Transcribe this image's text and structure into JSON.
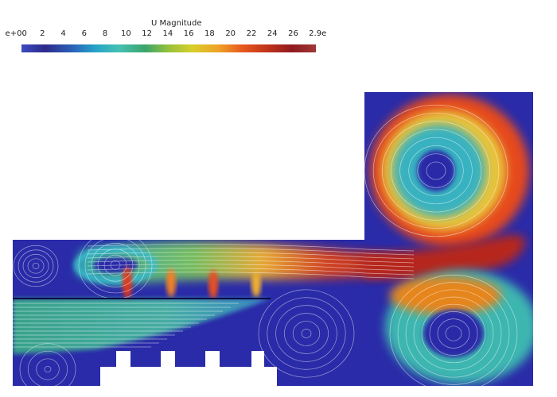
{
  "colorbar": {
    "title": "U Magnitude",
    "tick_labels": [
      "e+00",
      "2",
      "4",
      "6",
      "8",
      "10",
      "12",
      "14",
      "16",
      "18",
      "20",
      "22",
      "24",
      "26",
      "2.9e"
    ],
    "colors": [
      "#3b4cc0",
      "#2d2a8a",
      "#2a5fb8",
      "#25a3c8",
      "#45c1b2",
      "#3aa56a",
      "#97c13a",
      "#d7cf2a",
      "#f0a028",
      "#e65a1e",
      "#c3341b",
      "#8f1a1f",
      "#a03838"
    ]
  },
  "palette": {
    "background": "#2a2ba8",
    "streamline": "#ffffff",
    "geometry_fill": "#ffffff"
  }
}
